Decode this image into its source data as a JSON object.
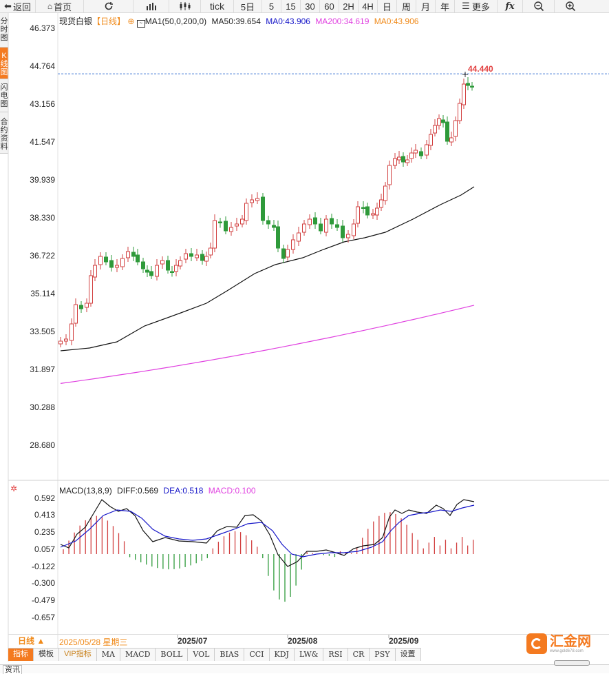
{
  "toolbar": {
    "back": "返回",
    "home": "首页",
    "tick": "tick",
    "periods": [
      "5日",
      "5",
      "15",
      "30",
      "60",
      "2H",
      "4H",
      "日",
      "周",
      "月",
      "年"
    ],
    "more": "更多"
  },
  "sidebar": {
    "tabs": [
      {
        "label": "分时图",
        "active": false
      },
      {
        "label": "K线图",
        "active": true
      },
      {
        "label": "闪电图",
        "active": false
      },
      {
        "label": "合约资料",
        "active": false
      }
    ]
  },
  "legend": {
    "symbol": "现货白银",
    "period": "【日线】",
    "ma_def": "MA1(50,0,200,0)",
    "ma50": "MA50:39.654",
    "ma0": "MA0:43.906",
    "ma200": "MA200:34.619",
    "ma0b": "MA0:43.906",
    "colors": {
      "ma50": "#222222",
      "ma0": "#1515c8",
      "ma200": "#e040e0",
      "ma0b": "#f08a1a"
    }
  },
  "main_yaxis": [
    "46.373",
    "44.764",
    "43.156",
    "41.547",
    "39.939",
    "38.330",
    "36.722",
    "35.114",
    "33.505",
    "31.897",
    "30.288",
    "28.680"
  ],
  "last_price_label": "44.440",
  "macd_legend": {
    "def": "MACD(13,8,9)",
    "diff": "DIFF:0.569",
    "dea": "DEA:0.518",
    "macd": "MACD:0.100"
  },
  "macd_yaxis": [
    "0.592",
    "0.413",
    "0.235",
    "0.057",
    "-0.122",
    "-0.300",
    "-0.479",
    "-0.657"
  ],
  "date_bar": {
    "toggle": "日线 ▲",
    "cursor_date": "2025/05/28 星期三",
    "months": [
      "2025/07",
      "2025/08",
      "2025/09"
    ]
  },
  "bottom_tabs": [
    "指标",
    "模板",
    "VIP指标",
    "MA",
    "MACD",
    "BOLL",
    "VOL",
    "BIAS",
    "CCI",
    "KDJ",
    "LW&",
    "RSI",
    "CR",
    "PSY",
    "设置"
  ],
  "brand": "汇金网",
  "brand_site": "www.gold678.com",
  "footer_text": "资讯",
  "chart_data": {
    "type": "candlestick",
    "ylim": [
      28.2,
      46.6
    ],
    "ma50_endpoints": [
      32.7,
      39.65
    ],
    "ma200_endpoints": [
      31.3,
      34.62
    ],
    "last_price": 44.44,
    "macd_ylim": [
      -0.75,
      0.66
    ]
  }
}
